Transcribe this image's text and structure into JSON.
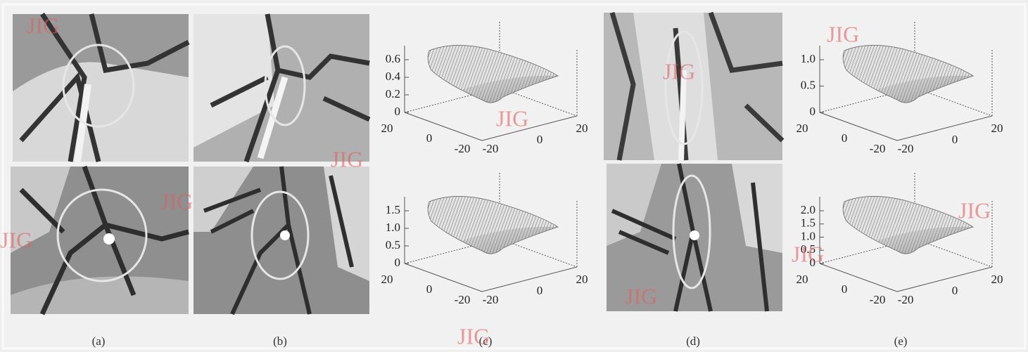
{
  "captions": [
    "(a)",
    "(b)",
    "(c)",
    "(d)",
    "(e)"
  ],
  "plots": [
    {
      "zticks": [
        "0",
        "0.2",
        "0.4",
        "0.6"
      ],
      "depth_ticks": [
        "20",
        "0",
        "-20"
      ],
      "front_ticks": [
        "-20",
        "0",
        "20"
      ]
    },
    {
      "zticks": [
        "0",
        "0.5",
        "1.0",
        "1.5"
      ],
      "depth_ticks": [
        "20",
        "0",
        "-20"
      ],
      "front_ticks": [
        "-20",
        "0",
        "20"
      ]
    },
    {
      "zticks": [
        "0",
        "0.5",
        "1.0"
      ],
      "depth_ticks": [
        "20",
        "0",
        "-20"
      ],
      "front_ticks": [
        "-20",
        "0",
        "20"
      ]
    },
    {
      "zticks": [
        "0",
        "0.5",
        "1.0",
        "1.5",
        "2.0"
      ],
      "depth_ticks": [
        "20",
        "0",
        "-20"
      ],
      "front_ticks": [
        "-20",
        "0",
        "20"
      ]
    }
  ],
  "watermarks": [
    "JIG",
    "JIG",
    "JIG",
    "JIG",
    "JIG",
    "JIG",
    "JIG",
    "JIG",
    "JIG",
    "JIG",
    "JIG"
  ]
}
